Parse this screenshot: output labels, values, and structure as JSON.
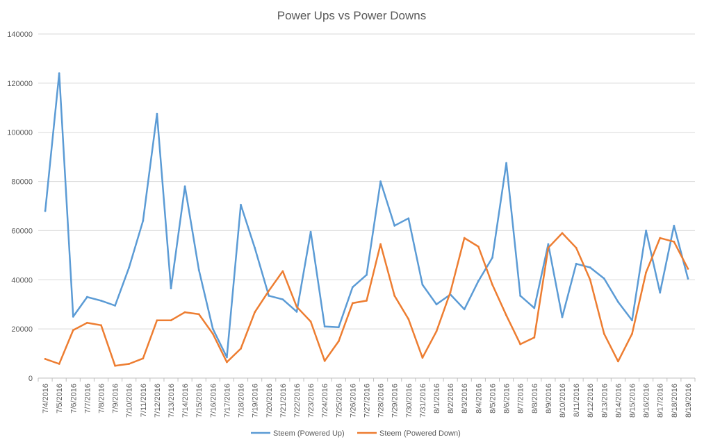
{
  "chart_data": {
    "type": "line",
    "title": "Power Ups vs Power Downs",
    "xlabel": "",
    "ylabel": "",
    "ylim": [
      0,
      140000
    ],
    "yticks": [
      0,
      20000,
      40000,
      60000,
      80000,
      100000,
      120000,
      140000
    ],
    "grid": true,
    "legend_position": "bottom",
    "categories": [
      "7/4/2016",
      "7/5/2016",
      "7/6/2016",
      "7/7/2016",
      "7/8/2016",
      "7/9/2016",
      "7/10/2016",
      "7/11/2016",
      "7/12/2016",
      "7/13/2016",
      "7/14/2016",
      "7/15/2016",
      "7/16/2016",
      "7/17/2016",
      "7/18/2016",
      "7/19/2016",
      "7/20/2016",
      "7/21/2016",
      "7/22/2016",
      "7/23/2016",
      "7/24/2016",
      "7/25/2016",
      "7/26/2016",
      "7/27/2016",
      "7/28/2016",
      "7/29/2016",
      "7/30/2016",
      "7/31/2016",
      "8/1/2016",
      "8/2/2016",
      "8/3/2016",
      "8/4/2016",
      "8/5/2016",
      "8/6/2016",
      "8/7/2016",
      "8/8/2016",
      "8/9/2016",
      "8/10/2016",
      "8/11/2016",
      "8/12/2016",
      "8/13/2016",
      "8/14/2016",
      "8/15/2016",
      "8/16/2016",
      "8/17/2016",
      "8/18/2016",
      "8/19/2016"
    ],
    "series": [
      {
        "name": "Steem (Powered Up)",
        "color": "#5b9bd5",
        "values": [
          68000,
          124000,
          25000,
          33000,
          31500,
          29500,
          45000,
          64000,
          107500,
          36500,
          78000,
          44000,
          20000,
          8500,
          70500,
          53000,
          33500,
          32000,
          27000,
          59500,
          21000,
          20700,
          37000,
          42000,
          80000,
          62000,
          65000,
          38000,
          30000,
          34000,
          28000,
          39500,
          49000,
          87500,
          33500,
          28500,
          54500,
          24800,
          46500,
          45000,
          40500,
          31000,
          23500,
          60000,
          34800,
          62000,
          40500
        ]
      },
      {
        "name": "Steem (Powered Down)",
        "color": "#ed7d31",
        "values": [
          7800,
          5800,
          19500,
          22500,
          21500,
          5000,
          5800,
          8000,
          23500,
          23500,
          26800,
          26000,
          18000,
          6500,
          12000,
          26800,
          35500,
          43500,
          29000,
          23000,
          7000,
          15000,
          30500,
          31500,
          54500,
          33500,
          24000,
          8300,
          19000,
          35000,
          57000,
          53500,
          38000,
          25500,
          13800,
          16500,
          53000,
          59000,
          53000,
          40000,
          18000,
          6800,
          18000,
          43000,
          57000,
          55500,
          44500
        ]
      }
    ]
  }
}
